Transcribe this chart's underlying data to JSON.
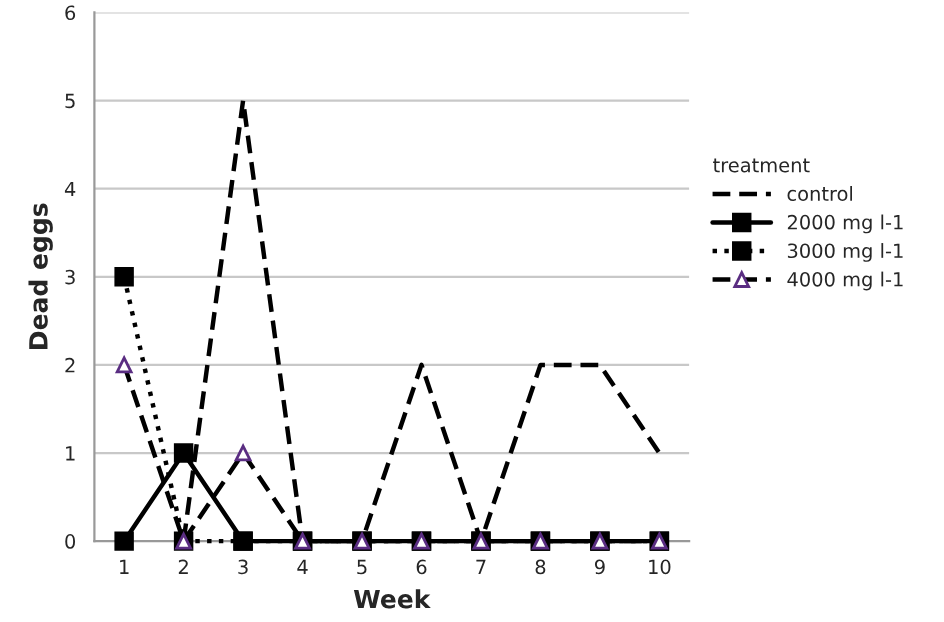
{
  "chart_data": {
    "type": "line",
    "xlabel": "Week",
    "ylabel": "Dead eggs",
    "legend_title": "treatment",
    "categories": [
      "1",
      "2",
      "3",
      "4",
      "5",
      "6",
      "7",
      "8",
      "9",
      "10"
    ],
    "series": [
      {
        "name": "control",
        "color": "#000000",
        "line_style": "dashed",
        "marker": "none",
        "values": [
          null,
          0,
          5,
          0,
          0,
          2,
          0,
          2,
          2,
          1
        ]
      },
      {
        "name": "2000 mg l-1",
        "color": "#000000",
        "line_style": "solid",
        "marker": "square",
        "values": [
          0,
          1,
          0,
          0,
          0,
          0,
          0,
          0,
          0,
          0
        ]
      },
      {
        "name": "3000 mg l-1",
        "color": "#000000",
        "line_style": "dotted",
        "marker": "square",
        "values": [
          3,
          0,
          0,
          0,
          0,
          0,
          0,
          0,
          0,
          0
        ]
      },
      {
        "name": "4000 mg l-1",
        "color": "#000000",
        "line_style": "dashed",
        "marker": "triangle",
        "values": [
          2,
          0,
          1,
          0,
          0,
          0,
          0,
          0,
          0,
          0
        ]
      }
    ],
    "ylim": [
      0,
      6
    ],
    "yticks": [
      0,
      1,
      2,
      3,
      4,
      5,
      6
    ],
    "grid": "y",
    "legend": "right"
  }
}
